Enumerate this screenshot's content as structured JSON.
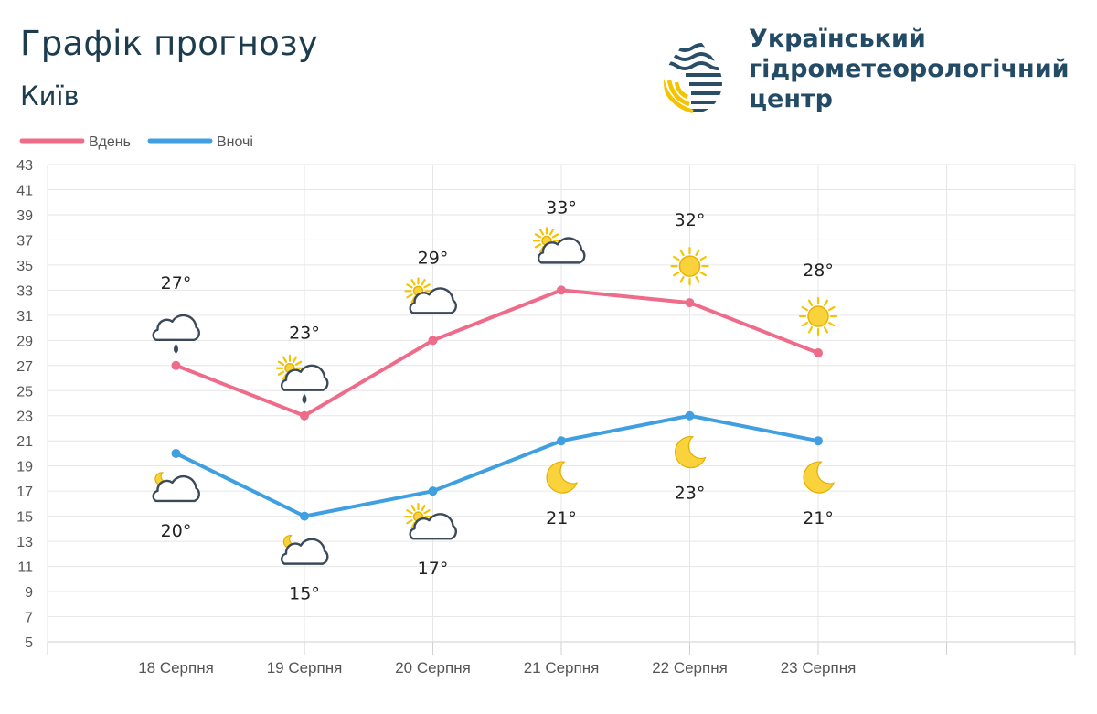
{
  "header": {
    "title": "Графік прогнозу",
    "subtitle": "Київ"
  },
  "logo": {
    "lines": [
      "Український",
      "гідрометеорологічний",
      "центр"
    ],
    "colors": {
      "text": "#244b66",
      "accent": "#f5c400"
    }
  },
  "chart_data": {
    "type": "line",
    "title": "Графік прогнозу",
    "subtitle": "Київ",
    "categories": [
      "18 Серпня",
      "19 Серпня",
      "20 Серпня",
      "21 Серпня",
      "22 Серпня",
      "23 Серпня"
    ],
    "ylim": [
      5,
      43
    ],
    "yticks": [
      5,
      7,
      9,
      11,
      13,
      15,
      17,
      19,
      21,
      23,
      25,
      27,
      29,
      31,
      33,
      35,
      37,
      39,
      41,
      43
    ],
    "grid": true,
    "legend_position": "top-left",
    "series": [
      {
        "name": "Вдень",
        "color": "#ef6b8a",
        "values": [
          27,
          23,
          29,
          33,
          32,
          28
        ],
        "labels": [
          "27°",
          "23°",
          "29°",
          "33°",
          "32°",
          "28°"
        ],
        "icons": [
          "cloud-rain-icon",
          "partly-cloudy-rain-icon",
          "partly-cloudy-icon",
          "partly-cloudy-icon",
          "sun-icon",
          "sun-icon"
        ]
      },
      {
        "name": "Вночі",
        "color": "#3f9fe0",
        "values": [
          20,
          15,
          17,
          21,
          23,
          21
        ],
        "labels": [
          "20°",
          "15°",
          "17°",
          "21°",
          "23°",
          "21°"
        ],
        "icons": [
          "night-cloudy-icon",
          "night-cloudy-icon",
          "partly-cloudy-icon",
          "moon-icon",
          "moon-icon",
          "moon-icon"
        ]
      }
    ]
  }
}
